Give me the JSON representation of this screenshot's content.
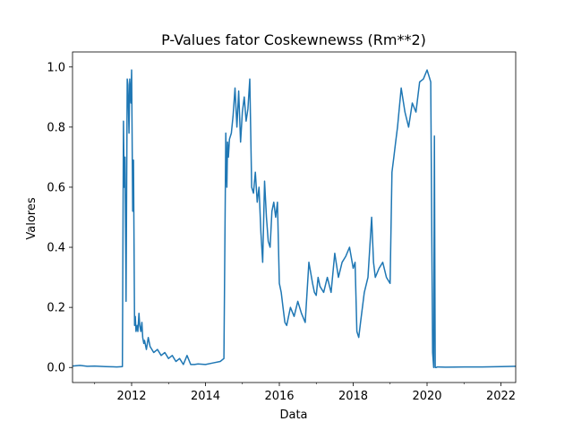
{
  "chart_data": {
    "type": "line",
    "title": "P-Values fator Coskewnewss (Rm**2)",
    "xlabel": "Data",
    "ylabel": "Valores",
    "xlim": [
      2010.4,
      2022.4
    ],
    "ylim": [
      -0.05,
      1.05
    ],
    "x_major_ticks": [
      2012,
      2014,
      2016,
      2018,
      2020,
      2022
    ],
    "x_tick_labels": [
      "2012",
      "2014",
      "2016",
      "2018",
      "2020",
      "2022"
    ],
    "y_ticks": [
      0.0,
      0.2,
      0.4,
      0.6,
      0.8,
      1.0
    ],
    "y_tick_labels": [
      "0.0",
      "0.2",
      "0.4",
      "0.6",
      "0.8",
      "1.0"
    ],
    "grid": false,
    "line_color": "#1f77b4",
    "series": [
      {
        "x": [
          2010.4,
          2010.6,
          2010.8,
          2011.0,
          2011.3,
          2011.6,
          2011.75,
          2011.78,
          2011.8,
          2011.82,
          2011.85,
          2011.88,
          2011.9,
          2011.93,
          2011.95,
          2011.98,
          2012.0,
          2012.03,
          2012.05,
          2012.08,
          2012.1,
          2012.12,
          2012.15,
          2012.17,
          2012.2,
          2012.22,
          2012.25,
          2012.28,
          2012.3,
          2012.33,
          2012.35,
          2012.4,
          2012.45,
          2012.5,
          2012.6,
          2012.7,
          2012.8,
          2012.9,
          2013.0,
          2013.1,
          2013.2,
          2013.3,
          2013.4,
          2013.5,
          2013.6,
          2013.7,
          2013.8,
          2014.0,
          2014.2,
          2014.4,
          2014.5,
          2014.55,
          2014.58,
          2014.6,
          2014.62,
          2014.65,
          2014.7,
          2014.75,
          2014.8,
          2014.85,
          2014.9,
          2014.95,
          2015.0,
          2015.05,
          2015.1,
          2015.15,
          2015.2,
          2015.25,
          2015.3,
          2015.35,
          2015.4,
          2015.45,
          2015.5,
          2015.55,
          2015.6,
          2015.65,
          2015.7,
          2015.75,
          2015.8,
          2015.85,
          2015.9,
          2015.95,
          2016.0,
          2016.05,
          2016.1,
          2016.15,
          2016.2,
          2016.3,
          2016.4,
          2016.5,
          2016.6,
          2016.7,
          2016.8,
          2016.9,
          2016.95,
          2017.0,
          2017.05,
          2017.1,
          2017.2,
          2017.3,
          2017.4,
          2017.5,
          2017.6,
          2017.7,
          2017.8,
          2017.9,
          2018.0,
          2018.05,
          2018.1,
          2018.15,
          2018.2,
          2018.3,
          2018.4,
          2018.5,
          2018.55,
          2018.6,
          2018.7,
          2018.8,
          2018.9,
          2019.0,
          2019.05,
          2019.1,
          2019.15,
          2019.2,
          2019.3,
          2019.4,
          2019.5,
          2019.6,
          2019.7,
          2019.8,
          2019.9,
          2020.0,
          2020.05,
          2020.1,
          2020.15,
          2020.18,
          2020.2,
          2020.22,
          2020.25,
          2020.28,
          2020.3,
          2020.5,
          2021.0,
          2021.5,
          2022.0,
          2022.4
        ],
        "y": [
          0.005,
          0.007,
          0.004,
          0.005,
          0.003,
          0.002,
          0.003,
          0.82,
          0.6,
          0.7,
          0.22,
          0.96,
          0.94,
          0.78,
          0.96,
          0.88,
          0.99,
          0.52,
          0.69,
          0.14,
          0.17,
          0.12,
          0.14,
          0.12,
          0.18,
          0.14,
          0.12,
          0.15,
          0.1,
          0.08,
          0.09,
          0.06,
          0.1,
          0.07,
          0.05,
          0.06,
          0.04,
          0.05,
          0.03,
          0.04,
          0.02,
          0.03,
          0.01,
          0.04,
          0.01,
          0.01,
          0.012,
          0.01,
          0.015,
          0.02,
          0.03,
          0.78,
          0.6,
          0.75,
          0.7,
          0.76,
          0.78,
          0.84,
          0.93,
          0.8,
          0.92,
          0.75,
          0.85,
          0.9,
          0.82,
          0.86,
          0.96,
          0.6,
          0.58,
          0.65,
          0.55,
          0.6,
          0.45,
          0.35,
          0.62,
          0.5,
          0.42,
          0.4,
          0.52,
          0.55,
          0.5,
          0.55,
          0.28,
          0.25,
          0.2,
          0.15,
          0.14,
          0.2,
          0.17,
          0.22,
          0.18,
          0.15,
          0.35,
          0.28,
          0.25,
          0.24,
          0.3,
          0.27,
          0.25,
          0.3,
          0.25,
          0.38,
          0.3,
          0.35,
          0.37,
          0.4,
          0.33,
          0.35,
          0.12,
          0.1,
          0.15,
          0.25,
          0.3,
          0.5,
          0.35,
          0.3,
          0.33,
          0.35,
          0.3,
          0.28,
          0.65,
          0.7,
          0.75,
          0.8,
          0.93,
          0.85,
          0.8,
          0.88,
          0.85,
          0.95,
          0.96,
          0.99,
          0.97,
          0.95,
          0.05,
          0.0,
          0.77,
          0.0,
          0.0,
          0.002,
          0.002,
          0.001,
          0.002,
          0.002,
          0.003,
          0.004
        ]
      }
    ]
  }
}
